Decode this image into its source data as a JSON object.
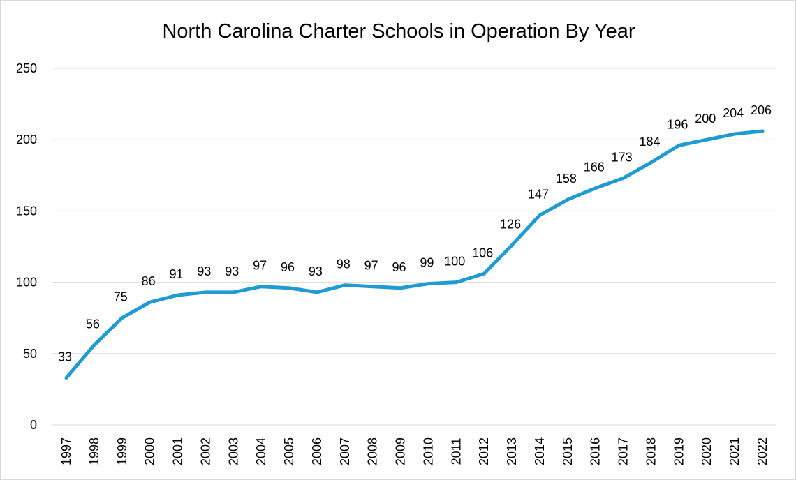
{
  "chart_data": {
    "type": "line",
    "title": "North Carolina Charter Schools in Operation By Year",
    "xlabel": "",
    "ylabel": "",
    "categories": [
      "1997",
      "1998",
      "1999",
      "2000",
      "2001",
      "2002",
      "2003",
      "2004",
      "2005",
      "2006",
      "2007",
      "2008",
      "2009",
      "2010",
      "2011",
      "2012",
      "2013",
      "2014",
      "2015",
      "2016",
      "2017",
      "2018",
      "2019",
      "2020",
      "2021",
      "2022"
    ],
    "series": [
      {
        "values": [
          33,
          56,
          75,
          86,
          91,
          93,
          93,
          97,
          96,
          93,
          98,
          97,
          96,
          99,
          100,
          106,
          126,
          147,
          158,
          166,
          173,
          184,
          196,
          200,
          204,
          206
        ],
        "color": "#1f9bd1"
      }
    ],
    "ylim": [
      0,
      250
    ],
    "yticks": [
      "0",
      "50",
      "100",
      "150",
      "200",
      "250"
    ],
    "grid": true,
    "legend": "none",
    "data_labels": true
  }
}
